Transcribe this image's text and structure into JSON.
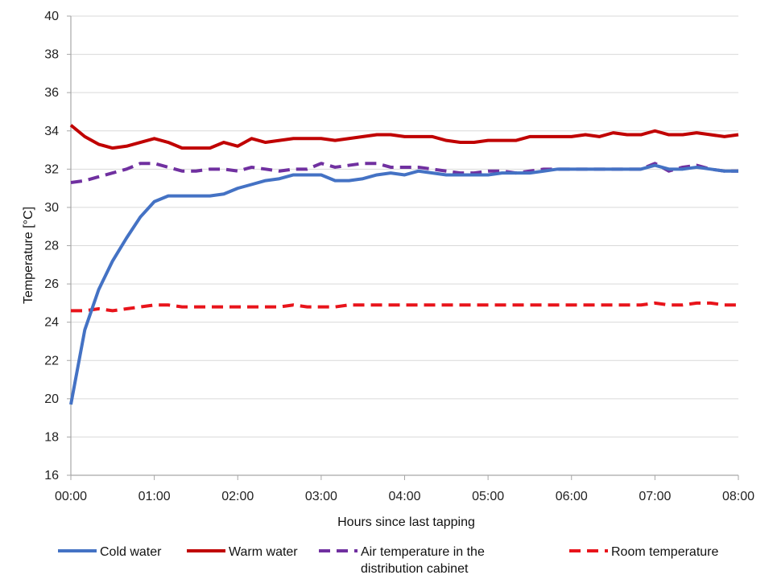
{
  "chart_data": {
    "type": "line",
    "title": "",
    "xlabel": "Hours since last tapping",
    "ylabel": "Temperature [°C]",
    "xlim": [
      0,
      8
    ],
    "ylim": [
      16,
      40
    ],
    "x_ticks": [
      0,
      1,
      2,
      3,
      4,
      5,
      6,
      7,
      8
    ],
    "x_tick_labels": [
      "00:00",
      "01:00",
      "02:00",
      "03:00",
      "04:00",
      "05:00",
      "06:00",
      "07:00",
      "08:00"
    ],
    "y_ticks": [
      16,
      18,
      20,
      22,
      24,
      26,
      28,
      30,
      32,
      34,
      36,
      38,
      40
    ],
    "y_tick_labels": [
      "16",
      "18",
      "20",
      "22",
      "24",
      "26",
      "28",
      "30",
      "32",
      "34",
      "36",
      "38",
      "40"
    ],
    "grid": "horizontal",
    "legend_position": "bottom",
    "series": [
      {
        "name": "Cold water",
        "color": "#4472c4",
        "dash": "solid",
        "x": [
          0,
          0.167,
          0.333,
          0.5,
          0.667,
          0.833,
          1.0,
          1.167,
          1.333,
          1.5,
          1.667,
          1.833,
          2.0,
          2.167,
          2.333,
          2.5,
          2.667,
          2.833,
          3.0,
          3.167,
          3.333,
          3.5,
          3.667,
          3.833,
          4.0,
          4.167,
          4.333,
          4.5,
          4.667,
          4.833,
          5.0,
          5.167,
          5.333,
          5.5,
          5.667,
          5.833,
          6.0,
          6.167,
          6.333,
          6.5,
          6.667,
          6.833,
          7.0,
          7.167,
          7.333,
          7.5,
          7.667,
          7.833,
          8.0
        ],
        "y": [
          19.7,
          23.6,
          25.7,
          27.2,
          28.4,
          29.5,
          30.3,
          30.6,
          30.6,
          30.6,
          30.6,
          30.7,
          31.0,
          31.2,
          31.4,
          31.5,
          31.7,
          31.7,
          31.7,
          31.4,
          31.4,
          31.5,
          31.7,
          31.8,
          31.7,
          31.9,
          31.8,
          31.7,
          31.7,
          31.7,
          31.7,
          31.8,
          31.8,
          31.8,
          31.9,
          32.0,
          32.0,
          32.0,
          32.0,
          32.0,
          32.0,
          32.0,
          32.2,
          32.0,
          32.0,
          32.1,
          32.0,
          31.9,
          31.9
        ]
      },
      {
        "name": "Warm water",
        "color": "#c00000",
        "dash": "solid",
        "x": [
          0,
          0.167,
          0.333,
          0.5,
          0.667,
          0.833,
          1.0,
          1.167,
          1.333,
          1.5,
          1.667,
          1.833,
          2.0,
          2.167,
          2.333,
          2.5,
          2.667,
          2.833,
          3.0,
          3.167,
          3.333,
          3.5,
          3.667,
          3.833,
          4.0,
          4.167,
          4.333,
          4.5,
          4.667,
          4.833,
          5.0,
          5.167,
          5.333,
          5.5,
          5.667,
          5.833,
          6.0,
          6.167,
          6.333,
          6.5,
          6.667,
          6.833,
          7.0,
          7.167,
          7.333,
          7.5,
          7.667,
          7.833,
          8.0
        ],
        "y": [
          34.3,
          33.7,
          33.3,
          33.1,
          33.2,
          33.4,
          33.6,
          33.4,
          33.1,
          33.1,
          33.1,
          33.4,
          33.2,
          33.6,
          33.4,
          33.5,
          33.6,
          33.6,
          33.6,
          33.5,
          33.6,
          33.7,
          33.8,
          33.8,
          33.7,
          33.7,
          33.7,
          33.5,
          33.4,
          33.4,
          33.5,
          33.5,
          33.5,
          33.7,
          33.7,
          33.7,
          33.7,
          33.8,
          33.7,
          33.9,
          33.8,
          33.8,
          34.0,
          33.8,
          33.8,
          33.9,
          33.8,
          33.7,
          33.8
        ]
      },
      {
        "name": "Air temperature in the distribution cabinet",
        "color": "#7030a0",
        "dash": "dashed",
        "x": [
          0,
          0.167,
          0.333,
          0.5,
          0.667,
          0.833,
          1.0,
          1.167,
          1.333,
          1.5,
          1.667,
          1.833,
          2.0,
          2.167,
          2.333,
          2.5,
          2.667,
          2.833,
          3.0,
          3.167,
          3.333,
          3.5,
          3.667,
          3.833,
          4.0,
          4.167,
          4.333,
          4.5,
          4.667,
          4.833,
          5.0,
          5.167,
          5.333,
          5.5,
          5.667,
          5.833,
          6.0,
          6.167,
          6.333,
          6.5,
          6.667,
          6.833,
          7.0,
          7.167,
          7.333,
          7.5,
          7.667,
          7.833,
          8.0
        ],
        "y": [
          31.3,
          31.4,
          31.6,
          31.8,
          32.0,
          32.3,
          32.3,
          32.1,
          31.9,
          31.9,
          32.0,
          32.0,
          31.9,
          32.1,
          32.0,
          31.9,
          32.0,
          32.0,
          32.3,
          32.1,
          32.2,
          32.3,
          32.3,
          32.1,
          32.1,
          32.1,
          32.0,
          31.9,
          31.8,
          31.8,
          31.9,
          31.9,
          31.8,
          31.9,
          32.0,
          32.0,
          32.0,
          32.0,
          32.0,
          32.0,
          32.0,
          32.0,
          32.3,
          31.9,
          32.1,
          32.2,
          32.0,
          31.9,
          31.9
        ]
      },
      {
        "name": "Room temperature",
        "color": "#e8141b",
        "dash": "dashed",
        "x": [
          0,
          0.167,
          0.333,
          0.5,
          0.667,
          0.833,
          1.0,
          1.167,
          1.333,
          1.5,
          1.667,
          1.833,
          2.0,
          2.167,
          2.333,
          2.5,
          2.667,
          2.833,
          3.0,
          3.167,
          3.333,
          3.5,
          3.667,
          3.833,
          4.0,
          4.167,
          4.333,
          4.5,
          4.667,
          4.833,
          5.0,
          5.167,
          5.333,
          5.5,
          5.667,
          5.833,
          6.0,
          6.167,
          6.333,
          6.5,
          6.667,
          6.833,
          7.0,
          7.167,
          7.333,
          7.5,
          7.667,
          7.833,
          8.0
        ],
        "y": [
          24.6,
          24.6,
          24.7,
          24.6,
          24.7,
          24.8,
          24.9,
          24.9,
          24.8,
          24.8,
          24.8,
          24.8,
          24.8,
          24.8,
          24.8,
          24.8,
          24.9,
          24.8,
          24.8,
          24.8,
          24.9,
          24.9,
          24.9,
          24.9,
          24.9,
          24.9,
          24.9,
          24.9,
          24.9,
          24.9,
          24.9,
          24.9,
          24.9,
          24.9,
          24.9,
          24.9,
          24.9,
          24.9,
          24.9,
          24.9,
          24.9,
          24.9,
          25.0,
          24.9,
          24.9,
          25.0,
          25.0,
          24.9,
          24.9
        ]
      }
    ],
    "legend": [
      {
        "label_lines": [
          "Cold water"
        ],
        "color": "#4472c4",
        "dash": "solid"
      },
      {
        "label_lines": [
          "Warm water"
        ],
        "color": "#c00000",
        "dash": "solid"
      },
      {
        "label_lines": [
          "Air temperature in the",
          "distribution cabinet"
        ],
        "color": "#7030a0",
        "dash": "dashed"
      },
      {
        "label_lines": [
          "Room temperature"
        ],
        "color": "#e8141b",
        "dash": "dashed"
      }
    ],
    "colors": {
      "grid": "#d9d9d9",
      "axis": "#a6a6a6",
      "background": "#ffffff"
    }
  }
}
